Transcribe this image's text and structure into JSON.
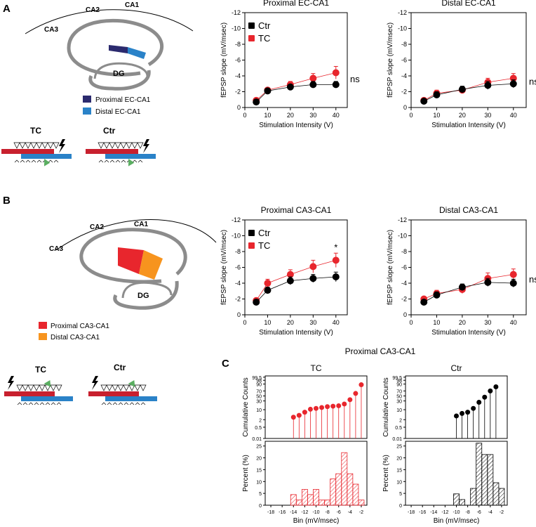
{
  "panel_labels": {
    "a": "A",
    "b": "B",
    "c": "C"
  },
  "schematic_a": {
    "ca1": "CA1",
    "ca2": "CA2",
    "ca3": "CA3",
    "dg": "DG",
    "legend": [
      {
        "label": "Proximal EC-CA1",
        "color": "#2b2a6e"
      },
      {
        "label": "Distal EC-CA1",
        "color": "#2a82c8"
      }
    ],
    "tc": "TC",
    "ctr": "Ctr"
  },
  "schematic_b": {
    "ca1": "CA1",
    "ca2": "CA2",
    "ca3": "CA3",
    "dg": "DG",
    "legend": [
      {
        "label": "Proximal CA3-CA1",
        "color": "#e8262d"
      },
      {
        "label": "Distal CA3-CA1",
        "color": "#f7941e"
      }
    ],
    "tc": "TC",
    "ctr": "Ctr"
  },
  "colors": {
    "ctr": "#000000",
    "tc": "#e8262d"
  },
  "c_title": "Proximal CA3-CA1",
  "chart_data": [
    {
      "id": "a1",
      "type": "line",
      "title": "Proximal EC-CA1",
      "xlabel": "Stimulation Intensity (V)",
      "ylabel": "fEPSP slope (mV/msec)",
      "xlim": [
        0,
        45
      ],
      "ylim": [
        0,
        -12
      ],
      "xticks": [
        0,
        10,
        20,
        30,
        40
      ],
      "yticks": [
        0,
        -2,
        -4,
        -6,
        -8,
        -10,
        -12
      ],
      "x": [
        5,
        10,
        20,
        30,
        40
      ],
      "series": [
        {
          "name": "Ctr",
          "values": [
            -0.7,
            -2.1,
            -2.6,
            -2.9,
            -2.9
          ],
          "err": [
            0.2,
            0.3,
            0.3,
            0.4,
            0.4
          ]
        },
        {
          "name": "TC",
          "values": [
            -0.9,
            -2.2,
            -2.9,
            -3.7,
            -4.4
          ],
          "err": [
            0.2,
            0.3,
            0.4,
            0.6,
            0.8
          ]
        }
      ],
      "legend": [
        "Ctr",
        "TC"
      ],
      "annotation": "ns"
    },
    {
      "id": "a2",
      "type": "line",
      "title": "Distal EC-CA1",
      "xlabel": "Stimulation Intensity (V)",
      "ylabel": "fEPSP slope (mV/msec)",
      "xlim": [
        0,
        45
      ],
      "ylim": [
        0,
        -12
      ],
      "xticks": [
        0,
        10,
        20,
        30,
        40
      ],
      "yticks": [
        0,
        -2,
        -4,
        -6,
        -8,
        -10,
        -12
      ],
      "x": [
        5,
        10,
        20,
        30,
        40
      ],
      "series": [
        {
          "name": "Ctr",
          "values": [
            -0.8,
            -1.6,
            -2.3,
            -2.8,
            -3.0
          ],
          "err": [
            0.2,
            0.4,
            0.4,
            0.5,
            0.5
          ]
        },
        {
          "name": "TC",
          "values": [
            -0.9,
            -1.8,
            -2.2,
            -3.2,
            -3.7
          ],
          "err": [
            0.2,
            0.4,
            0.4,
            0.5,
            0.6
          ]
        }
      ],
      "annotation": "ns"
    },
    {
      "id": "b1",
      "type": "line",
      "title": "Proximal CA3-CA1",
      "xlabel": "Stimulation Intensity (V)",
      "ylabel": "fEPSP slope (mV/msec)",
      "xlim": [
        0,
        45
      ],
      "ylim": [
        0,
        -12
      ],
      "xticks": [
        0,
        10,
        20,
        30,
        40
      ],
      "yticks": [
        0,
        -2,
        -4,
        -6,
        -8,
        -10,
        -12
      ],
      "x": [
        5,
        10,
        20,
        30,
        40
      ],
      "series": [
        {
          "name": "Ctr",
          "values": [
            -1.6,
            -3.1,
            -4.3,
            -4.6,
            -4.8
          ],
          "err": [
            0.3,
            0.4,
            0.5,
            0.5,
            0.6
          ]
        },
        {
          "name": "TC",
          "values": [
            -1.8,
            -4.0,
            -5.1,
            -6.1,
            -6.9
          ],
          "err": [
            0.3,
            0.5,
            0.6,
            0.8,
            0.9
          ]
        }
      ],
      "legend": [
        "Ctr",
        "TC"
      ],
      "annotation": "*"
    },
    {
      "id": "b2",
      "type": "line",
      "title": "Distal CA3-CA1",
      "xlabel": "Stimulation Intensity (V)",
      "ylabel": "fEPSP slope (mV/msec)",
      "xlim": [
        0,
        45
      ],
      "ylim": [
        0,
        -12
      ],
      "xticks": [
        0,
        10,
        20,
        30,
        40
      ],
      "yticks": [
        0,
        -2,
        -4,
        -6,
        -8,
        -10,
        -12
      ],
      "x": [
        5,
        10,
        20,
        30,
        40
      ],
      "series": [
        {
          "name": "Ctr",
          "values": [
            -1.6,
            -2.5,
            -3.5,
            -4.1,
            -4.0
          ],
          "err": [
            0.3,
            0.4,
            0.4,
            0.5,
            0.5
          ]
        },
        {
          "name": "TC",
          "values": [
            -2.0,
            -2.7,
            -3.2,
            -4.6,
            -5.1
          ],
          "err": [
            0.3,
            0.4,
            0.5,
            0.7,
            0.7
          ]
        }
      ],
      "annotation": "ns"
    },
    {
      "id": "c-tc",
      "type": "scatter",
      "title": "TC",
      "ylabel": "Cumulative Counts",
      "yticks": [
        "0.01",
        "0.5",
        "2",
        "10",
        "30",
        "50",
        "70",
        "90",
        "98",
        "99.5"
      ],
      "x": [
        -14,
        -13,
        -12,
        -11,
        -10,
        -9,
        -8,
        -7,
        -6,
        -5,
        -4,
        -3,
        -2
      ],
      "values": [
        4,
        5.5,
        8,
        11,
        13,
        15,
        17,
        18,
        19,
        23,
        35,
        60,
        88
      ]
    },
    {
      "id": "c-ctr",
      "type": "scatter",
      "title": "Ctr",
      "ylabel": "Cumulative Counts",
      "yticks": [
        "0.01",
        "0.5",
        "2",
        "10",
        "30",
        "50",
        "70",
        "90",
        "98",
        "99.5"
      ],
      "x": [
        -10,
        -9,
        -8,
        -7,
        -6,
        -5,
        -4,
        -3
      ],
      "values": [
        5,
        7,
        8,
        13,
        27,
        45,
        70,
        82
      ]
    },
    {
      "id": "c-tc-hist",
      "type": "bar",
      "xlabel": "Bin (mV/msec)",
      "ylabel": "Percent (%)",
      "xlim": [
        -19,
        -1
      ],
      "ylim": [
        0,
        27
      ],
      "xticks": [
        -18,
        -16,
        -14,
        -12,
        -10,
        -8,
        -6,
        -4,
        -2
      ],
      "yticks": [
        0,
        5,
        10,
        15,
        20,
        25
      ],
      "categories": [
        -14,
        -13,
        -12,
        -11,
        -10,
        -9,
        -8,
        -7,
        -6,
        -5,
        -4,
        -3,
        -2
      ],
      "values": [
        4.5,
        2.2,
        6.7,
        4.5,
        6.7,
        2.2,
        2.2,
        11.1,
        13.3,
        22.2,
        13.3,
        8.9,
        2.2
      ]
    },
    {
      "id": "c-ctr-hist",
      "type": "bar",
      "xlabel": "Bin (mV/msec)",
      "ylabel": "Percent (%)",
      "xlim": [
        -19,
        -1
      ],
      "ylim": [
        0,
        27
      ],
      "xticks": [
        -18,
        -16,
        -14,
        -12,
        -10,
        -8,
        -6,
        -4,
        -2
      ],
      "yticks": [
        0,
        5,
        10,
        15,
        20,
        25
      ],
      "categories": [
        -10,
        -9,
        -8,
        -7,
        -6,
        -5,
        -4,
        -3,
        -2
      ],
      "values": [
        4.8,
        2.4,
        0,
        7.1,
        26.2,
        21.4,
        21.4,
        9.5,
        7.1
      ]
    }
  ]
}
